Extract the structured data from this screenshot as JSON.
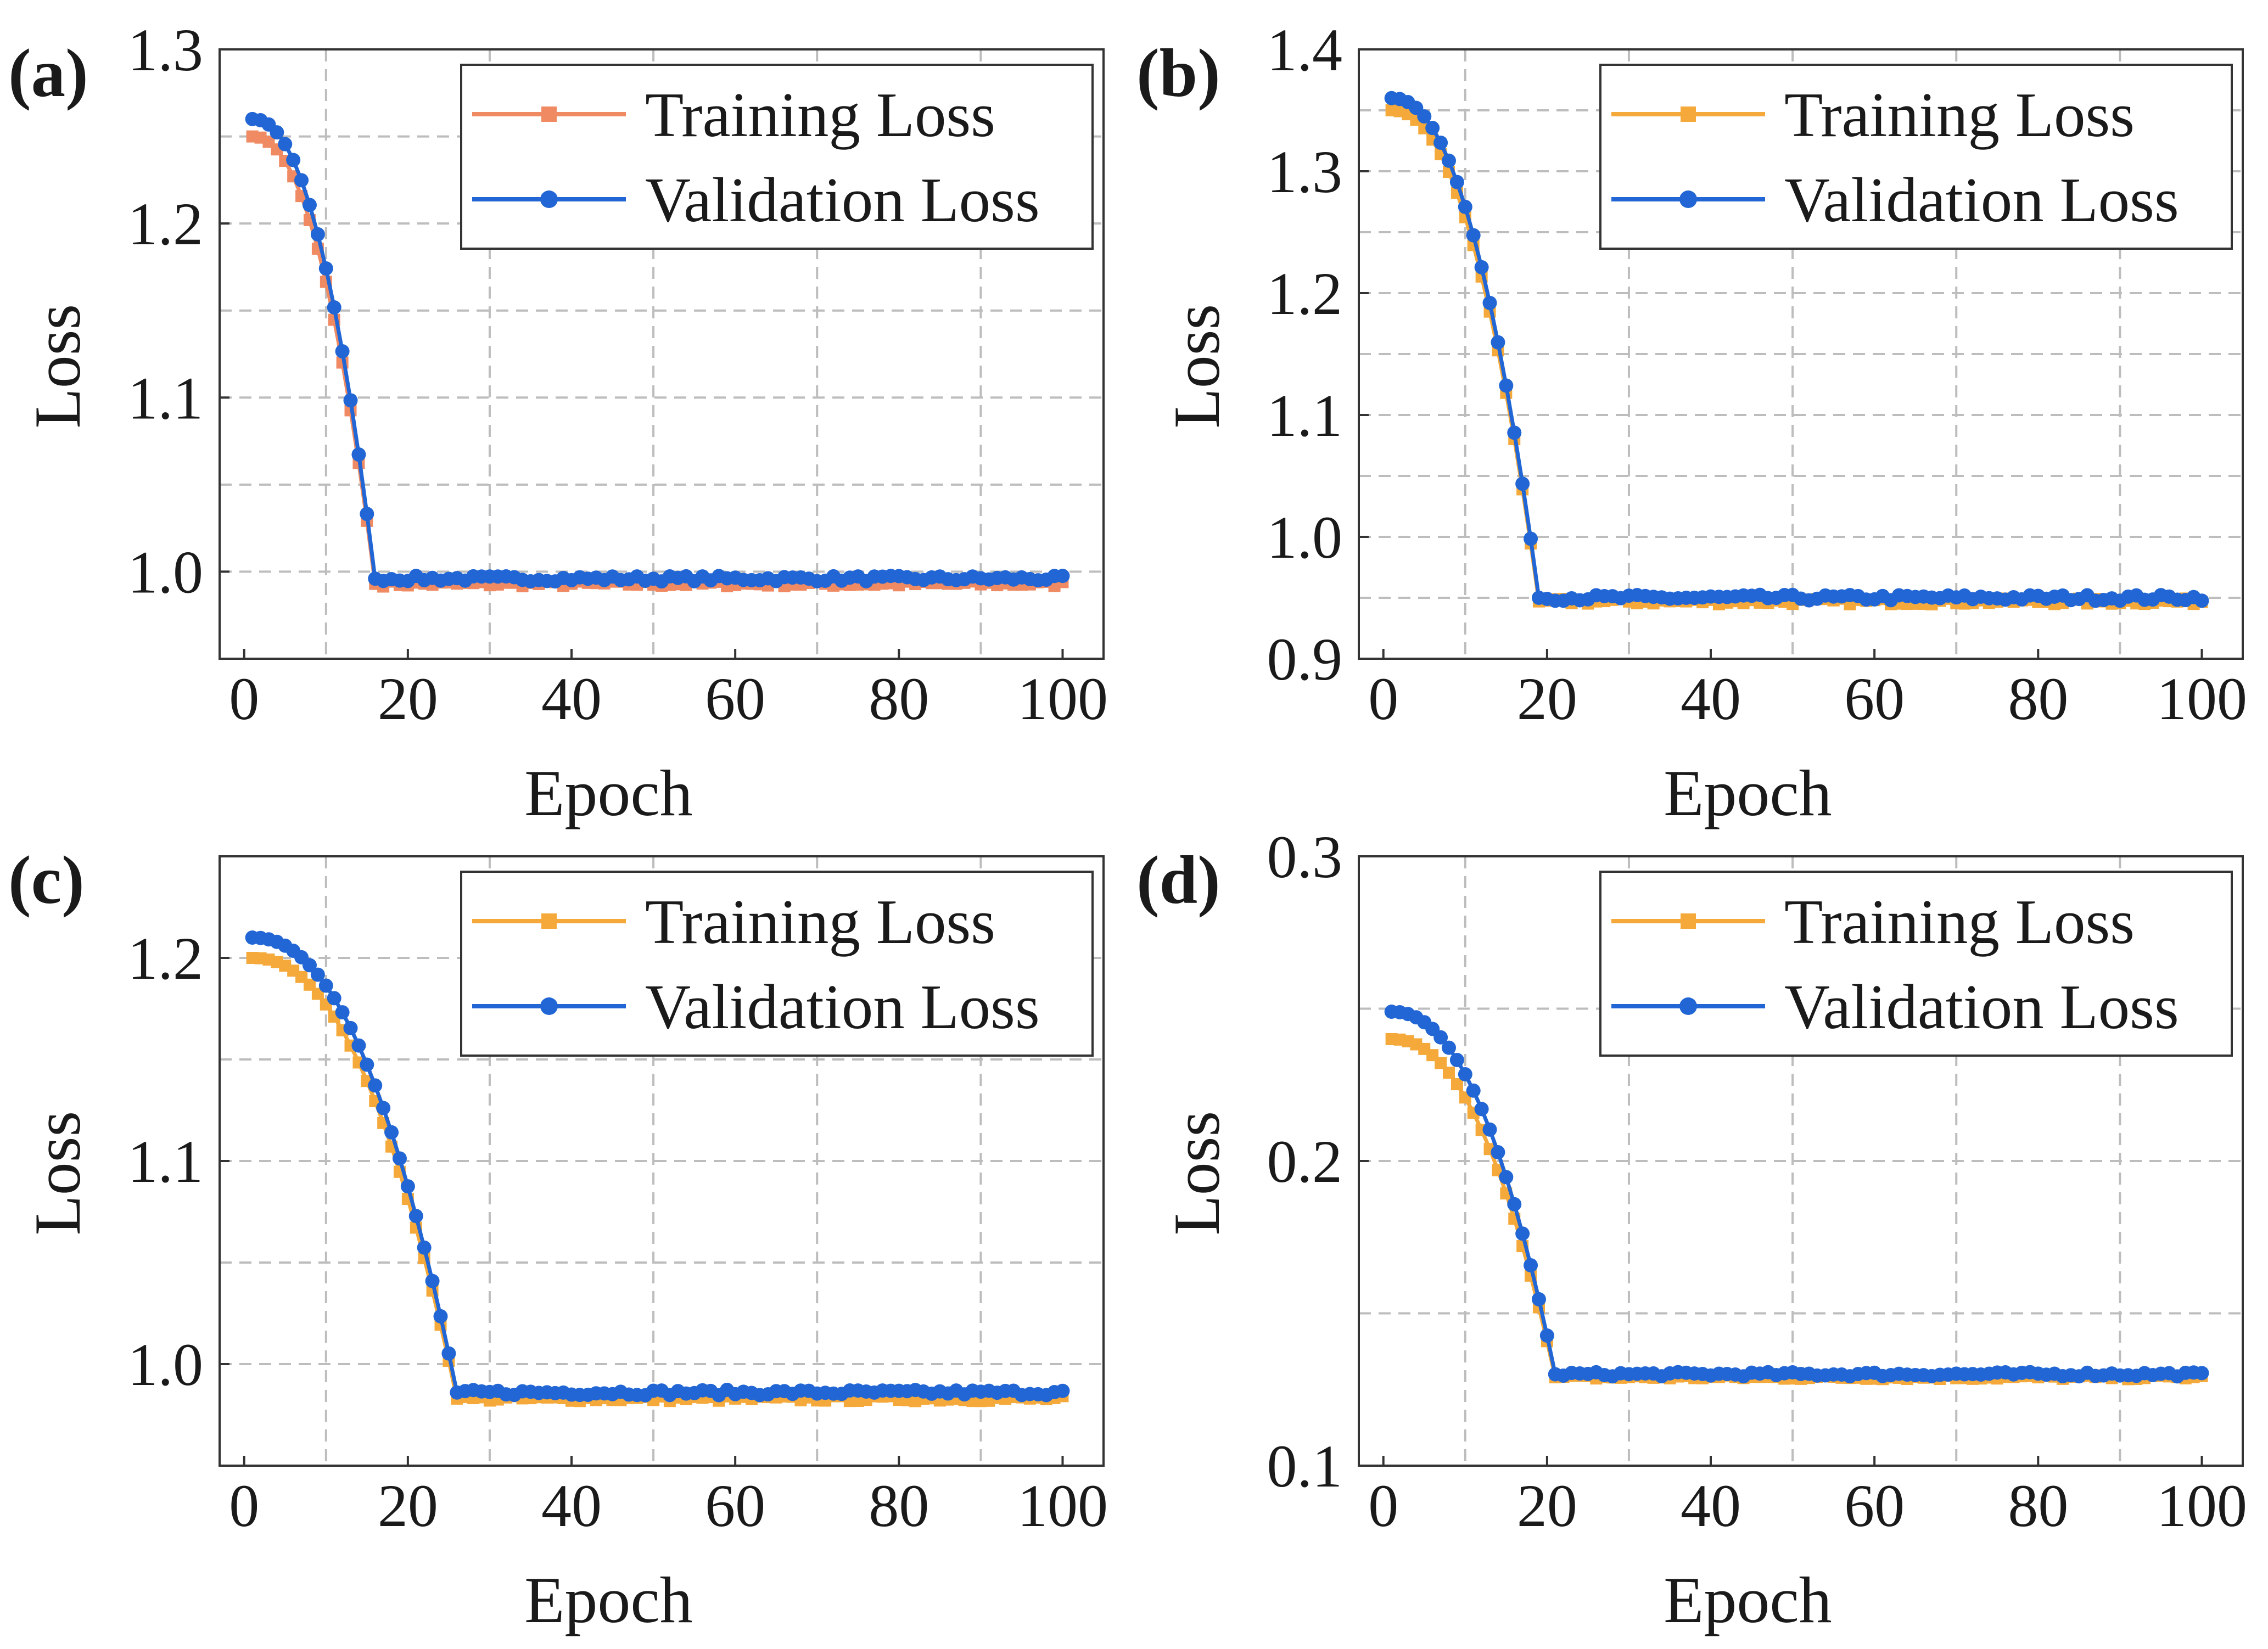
{
  "figure": {
    "background": "#ffffff"
  },
  "colors": {
    "training_a": "#ef8a62",
    "training": "#f4a93a",
    "validation": "#2166d4",
    "grid": "#bdbdbd",
    "axis": "#333333"
  },
  "chart_data": [
    {
      "panel": "(a)",
      "type": "line",
      "xlabel": "Epoch",
      "ylabel": "Loss",
      "xlim": [
        -3,
        105
      ],
      "ylim": [
        0.95,
        1.3
      ],
      "xticks": [
        0,
        20,
        40,
        60,
        80,
        100
      ],
      "yticks": [
        1.0,
        1.1,
        1.2,
        1.3
      ],
      "ytick_labels": [
        "1.0",
        "1.1",
        "1.2",
        "1.3"
      ],
      "minor_y_grid": [
        1.05,
        1.15,
        1.25
      ],
      "x_grid": [
        10,
        30,
        50,
        70,
        90
      ],
      "legend": [
        "Training Loss",
        "Validation Loss"
      ],
      "legend_position": "top-right",
      "plateau_epoch": 16,
      "series": [
        {
          "name": "Training Loss",
          "color_key": "training_a",
          "marker": "square",
          "start": 1.25,
          "end": 0.993
        },
        {
          "name": "Validation Loss",
          "color_key": "validation",
          "marker": "circle",
          "start": 1.26,
          "end": 0.996
        }
      ]
    },
    {
      "panel": "(b)",
      "type": "line",
      "xlabel": "Epoch",
      "ylabel": "Loss",
      "xlim": [
        -3,
        105
      ],
      "ylim": [
        0.9,
        1.4
      ],
      "xticks": [
        0,
        20,
        40,
        60,
        80,
        100
      ],
      "yticks": [
        0.9,
        1.0,
        1.1,
        1.2,
        1.3,
        1.4
      ],
      "ytick_labels": [
        "0.9",
        "1.0",
        "1.1",
        "1.2",
        "1.3",
        "1.4"
      ],
      "minor_y_grid": [
        0.95,
        1.05,
        1.15,
        1.25,
        1.35
      ],
      "x_grid": [
        10,
        30,
        50,
        70,
        90
      ],
      "legend": [
        "Training Loss",
        "Validation Loss"
      ],
      "legend_position": "top-right",
      "plateau_epoch": 19,
      "series": [
        {
          "name": "Training Loss",
          "color_key": "training",
          "marker": "square",
          "start": 1.35,
          "end": 0.947
        },
        {
          "name": "Validation Loss",
          "color_key": "validation",
          "marker": "circle",
          "start": 1.36,
          "end": 0.95
        }
      ]
    },
    {
      "panel": "(c)",
      "type": "line",
      "xlabel": "Epoch",
      "ylabel": "Loss",
      "xlim": [
        -3,
        105
      ],
      "ylim": [
        0.95,
        1.25
      ],
      "xticks": [
        0,
        20,
        40,
        60,
        80,
        100
      ],
      "yticks": [
        1.0,
        1.1,
        1.2
      ],
      "ytick_labels": [
        "1.0",
        "1.1",
        "1.2"
      ],
      "minor_y_grid": [
        1.05,
        1.15
      ],
      "x_grid": [
        10,
        30,
        50,
        70,
        90
      ],
      "legend": [
        "Training Loss",
        "Validation Loss"
      ],
      "legend_position": "top-right",
      "plateau_epoch": 26,
      "series": [
        {
          "name": "Training Loss",
          "color_key": "training",
          "marker": "square",
          "start": 1.2,
          "end": 0.983
        },
        {
          "name": "Validation Loss",
          "color_key": "validation",
          "marker": "circle",
          "start": 1.21,
          "end": 0.986
        }
      ]
    },
    {
      "panel": "(d)",
      "type": "line",
      "xlabel": "Epoch",
      "ylabel": "Loss",
      "xlim": [
        -3,
        105
      ],
      "ylim": [
        0.1,
        0.3
      ],
      "xticks": [
        0,
        20,
        40,
        60,
        80,
        100
      ],
      "yticks": [
        0.1,
        0.2,
        0.3
      ],
      "ytick_labels": [
        "0.1",
        "0.2",
        "0.3"
      ],
      "minor_y_grid": [
        0.15,
        0.25
      ],
      "x_grid": [
        10,
        30,
        50,
        70,
        90
      ],
      "legend": [
        "Training Loss",
        "Validation Loss"
      ],
      "legend_position": "top-right",
      "plateau_epoch": 21,
      "series": [
        {
          "name": "Training Loss",
          "color_key": "training",
          "marker": "square",
          "start": 0.24,
          "end": 0.129
        },
        {
          "name": "Validation Loss",
          "color_key": "validation",
          "marker": "circle",
          "start": 0.249,
          "end": 0.13
        }
      ]
    }
  ]
}
